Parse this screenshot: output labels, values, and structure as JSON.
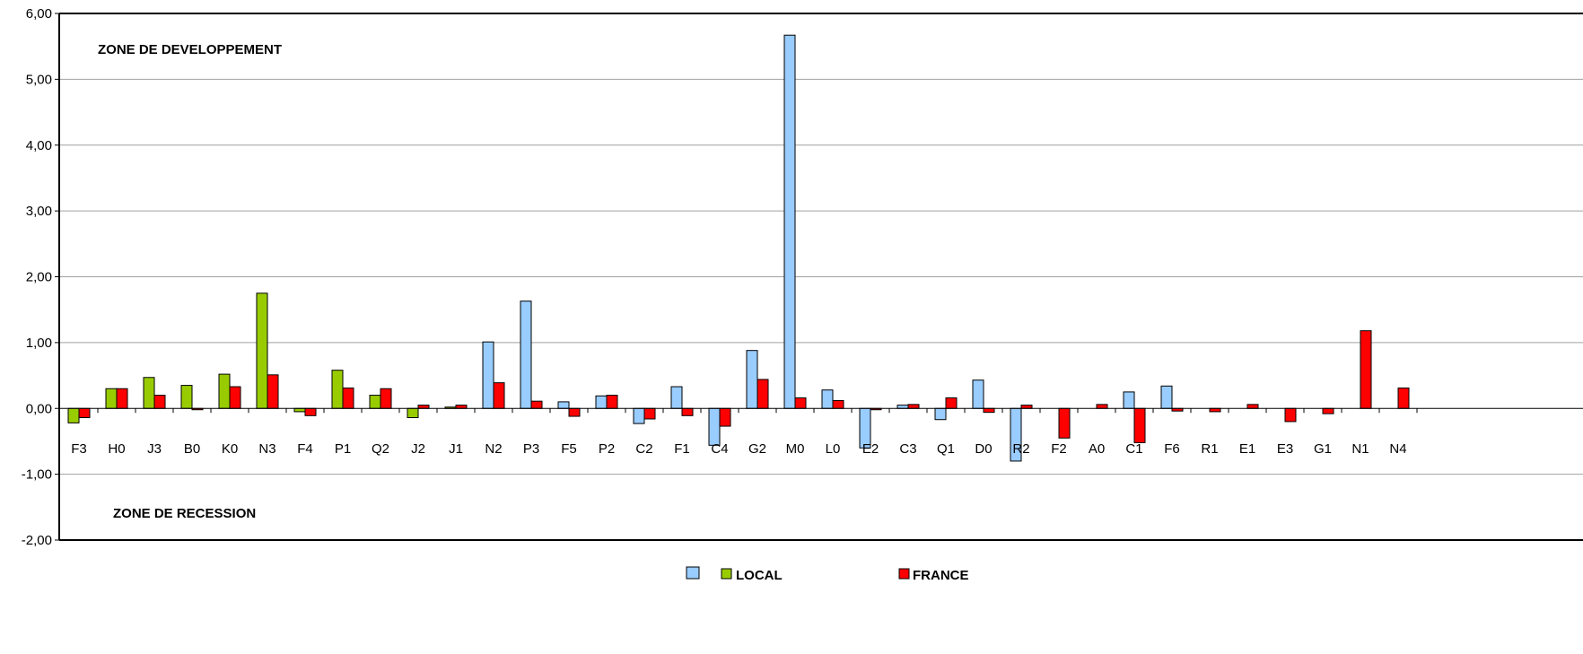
{
  "chart_data": {
    "type": "bar",
    "ylim": [
      -2,
      6
    ],
    "yticks": [
      "-2,00",
      "-1,00",
      "0,00",
      "1,00",
      "2,00",
      "3,00",
      "4,00",
      "5,00",
      "6,00"
    ],
    "grid": true,
    "annotations": {
      "top": "ZONE DE DEVELOPPEMENT",
      "bottom": "ZONE DE RECESSION"
    },
    "categories": [
      "F3",
      "H0",
      "J3",
      "B0",
      "K0",
      "N3",
      "F4",
      "P1",
      "Q2",
      "J2",
      "J1",
      "N2",
      "P3",
      "F5",
      "P2",
      "C2",
      "F1",
      "C4",
      "G2",
      "M0",
      "L0",
      "E2",
      "C3",
      "Q1",
      "D0",
      "R2",
      "F2",
      "A0",
      "C1",
      "F6",
      "R1",
      "E1",
      "E3",
      "G1",
      "N1",
      "N4"
    ],
    "local_colors": [
      "#99cc00",
      "#99cc00",
      "#99cc00",
      "#99cc00",
      "#99cc00",
      "#99cc00",
      "#99cc00",
      "#99cc00",
      "#99cc00",
      "#99cc00",
      "#99cc00",
      "#99ccff",
      "#99ccff",
      "#99ccff",
      "#99ccff",
      "#99ccff",
      "#99ccff",
      "#99ccff",
      "#99ccff",
      "#99ccff",
      "#99ccff",
      "#99ccff",
      "#99ccff",
      "#99ccff",
      "#99ccff",
      "#99ccff",
      "#99ccff",
      "#99ccff",
      "#99ccff",
      "#99ccff",
      "#99ccff",
      "#99ccff",
      "#99ccff",
      "#99ccff",
      "#99ccff",
      "#99ccff"
    ],
    "series": [
      {
        "name": "LOCAL",
        "values": [
          -0.22,
          0.3,
          0.47,
          0.35,
          0.52,
          1.75,
          -0.05,
          0.58,
          0.2,
          -0.14,
          0.02,
          1.01,
          1.63,
          0.1,
          0.19,
          -0.23,
          0.33,
          -0.56,
          0.88,
          5.67,
          0.28,
          -0.6,
          0.05,
          -0.17,
          0.43,
          -0.8,
          0,
          0,
          0.25,
          0.34,
          0,
          0,
          0,
          0,
          0,
          0
        ]
      },
      {
        "name": "FRANCE",
        "values": [
          -0.14,
          0.3,
          0.2,
          -0.02,
          0.33,
          0.51,
          -0.11,
          0.31,
          0.3,
          0.05,
          0.05,
          0.39,
          0.11,
          -0.12,
          0.2,
          -0.16,
          -0.11,
          -0.27,
          0.44,
          0.16,
          0.12,
          -0.02,
          0.06,
          0.16,
          -0.06,
          0.05,
          -0.45,
          0.06,
          -0.52,
          -0.04,
          -0.05,
          0.06,
          -0.2,
          -0.08,
          1.18,
          0.31
        ]
      }
    ],
    "legend": {
      "local_label": "LOCAL",
      "france_label": "FRANCE",
      "local_swatch_colors": [
        "#99ccff",
        "#99cc00"
      ],
      "france_color": "#ff0000",
      "position": "bottom-center"
    }
  }
}
